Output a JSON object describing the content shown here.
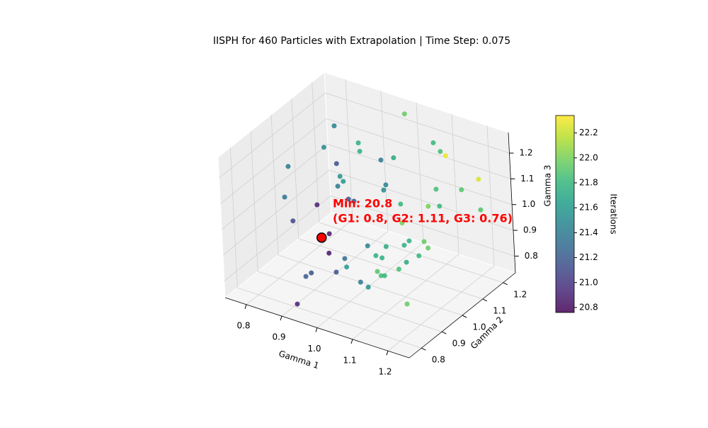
{
  "chart_data": {
    "type": "scatter3d",
    "title": "IISPH for 460 Particles with Extrapolation | Time Step: 0.075",
    "xlabel": "Gamma 1",
    "ylabel": "Gamma 2",
    "zlabel": "Gamma 3",
    "colorbar_label": "Iterations",
    "xlim": [
      0.74,
      1.26
    ],
    "ylim": [
      0.74,
      1.26
    ],
    "zlim": [
      0.735,
      1.28
    ],
    "xticks": [
      0.8,
      0.9,
      {
        "value": 1.0,
        "label": "1.0"
      },
      1.1,
      1.2
    ],
    "yticks": [
      0.8,
      0.9,
      {
        "value": 1.0,
        "label": "1.0"
      },
      1.1,
      1.2
    ],
    "zticks": [
      0.8,
      0.9,
      {
        "value": 1.0,
        "label": "1.0"
      },
      1.1,
      1.2
    ],
    "clim": [
      20.76,
      22.34
    ],
    "cticks": [
      20.8,
      {
        "value": 21,
        "label": "21.0"
      },
      21.2,
      21.4,
      21.6,
      21.8,
      {
        "value": 22,
        "label": "22.0"
      },
      22.2
    ],
    "colormap": [
      "#440154",
      "#482878",
      "#3e4989",
      "#31688e",
      "#26828e",
      "#1f9e89",
      "#35b779",
      "#6ece58",
      "#b5de2b",
      "#fde725"
    ],
    "grid": true,
    "x": [
      0.987,
      0.876,
      0.872,
      0.93,
      0.936,
      1.02,
      0.982,
      1.099,
      1.116,
      1.119,
      1.226,
      0.794,
      0.884,
      0.886,
      0.905,
      0.888,
      0.981,
      0.971,
      1.129,
      1.2,
      0.79,
      0.887,
      0.903,
      1.022,
      1.101,
      1.142,
      1.215,
      0.838,
      0.794,
      1.018,
      0.844,
      1.04,
      1.041,
      1.09,
      1.114,
      0.951,
      0.99,
      0.855,
      1.097,
      0.919,
      0.974,
      0.992,
      1.07,
      0.944,
      1.054,
      0.917,
      0.869,
      0.867,
      0.998,
      1.016,
      1.023,
      0.991,
      1.019,
      1.139,
      0.919
    ],
    "y": [
      1.223,
      1.071,
      1.024,
      1.092,
      1.087,
      1.107,
      1.109,
      1.168,
      1.171,
      1.19,
      1.164,
      0.979,
      1.06,
      1.07,
      1.053,
      1.054,
      1.128,
      1.133,
      1.121,
      1.124,
      0.962,
      1.103,
      1.102,
      1.126,
      1.126,
      1.112,
      1.185,
      1.034,
      0.989,
      1.135,
      1.075,
      1.128,
      1.102,
      1.116,
      1.094,
      1.077,
      1.1,
      1.051,
      1.077,
      1.019,
      1.076,
      1.075,
      1.061,
      0.985,
      1.05,
      0.979,
      0.94,
      0.917,
      1.04,
      1.027,
      1.032,
      0.97,
      0.959,
      0.941,
      0.785
    ],
    "z": [
      1.253,
      1.253,
      1.198,
      1.198,
      1.171,
      1.171,
      1.144,
      1.226,
      1.198,
      1.171,
      1.144,
      1.117,
      1.117,
      1.062,
      1.062,
      1.035,
      1.035,
      1.007,
      1.089,
      1.117,
      1.007,
      0.953,
      0.953,
      0.98,
      1.007,
      1.035,
      1.007,
      0.953,
      0.899,
      0.899,
      0.817,
      0.844,
      0.844,
      0.871,
      0.871,
      0.817,
      0.817,
      0.762,
      0.844,
      0.79,
      0.79,
      0.79,
      0.817,
      0.79,
      0.79,
      0.762,
      0.762,
      0.762,
      0.762,
      0.762,
      0.762,
      0.762,
      0.762,
      0.762,
      0.762
    ],
    "values": [
      21.95,
      21.45,
      21.5,
      21.75,
      21.75,
      21.7,
      21.4,
      21.8,
      21.85,
      22.3,
      22.25,
      21.4,
      21.15,
      21.55,
      21.6,
      21.4,
      21.45,
      21.5,
      21.85,
      21.9,
      21.35,
      21.15,
      21.2,
      21.8,
      22.0,
      21.8,
      21.9,
      20.9,
      21.1,
      22.0,
      20.85,
      21.75,
      21.75,
      21.95,
      21.95,
      21.45,
      21.7,
      20.85,
      21.8,
      21.3,
      21.75,
      21.75,
      21.7,
      21.6,
      21.85,
      21.15,
      21.15,
      21.2,
      21.9,
      21.85,
      21.8,
      21.4,
      21.55,
      21.95,
      20.9
    ],
    "min_point": {
      "x": 0.8,
      "y": 1.11,
      "z": 0.76,
      "value": 20.8,
      "color": "red"
    },
    "annotation": [
      "Min: 20.8",
      "(G1: 0.8, G2: 1.11, G3: 0.76)"
    ],
    "annotation_color": "red"
  }
}
